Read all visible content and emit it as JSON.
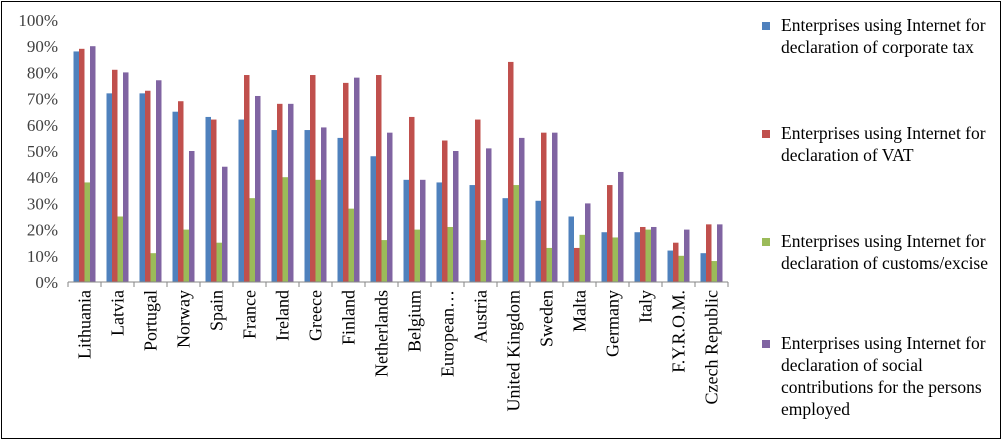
{
  "chart_data": {
    "type": "bar",
    "ylim": [
      0,
      100
    ],
    "y_ticks": [
      "0%",
      "10%",
      "20%",
      "30%",
      "40%",
      "50%",
      "60%",
      "70%",
      "80%",
      "90%",
      "100%"
    ],
    "grid": false,
    "legend_position": "right",
    "categories": [
      "Lithuania",
      "Latvia",
      "Portugal",
      "Norway",
      "Spain",
      "France",
      "Ireland",
      "Greece",
      "Finland",
      "Netherlands",
      "Belgium",
      "European…",
      "Austria",
      "United Kingdom",
      "Sweden",
      "Malta",
      "Germany",
      "Italy",
      "F.Y.R.O.M.",
      "Czech Republic"
    ],
    "series": [
      {
        "name": "Enterprises using Internet for declaration of corporate tax",
        "color": "#4F81BD",
        "values": [
          88,
          72,
          72,
          65,
          63,
          62,
          58,
          58,
          55,
          48,
          39,
          38,
          37,
          32,
          31,
          25,
          19,
          19,
          12,
          11
        ]
      },
      {
        "name": "Enterprises using Internet for declaration of VAT",
        "color": "#C0504D",
        "values": [
          89,
          81,
          73,
          69,
          62,
          79,
          68,
          79,
          76,
          79,
          63,
          54,
          62,
          84,
          57,
          13,
          37,
          21,
          15,
          22
        ]
      },
      {
        "name": "Enterprises using Internet for declaration of customs/excise",
        "color": "#9BBB59",
        "values": [
          38,
          25,
          11,
          20,
          15,
          32,
          40,
          39,
          28,
          16,
          20,
          21,
          16,
          37,
          13,
          18,
          17,
          20,
          10,
          8
        ]
      },
      {
        "name": "Enterprises using Internet for declaration of social contributions for the persons employed",
        "color": "#8064A2",
        "values": [
          90,
          80,
          77,
          50,
          44,
          71,
          68,
          59,
          78,
          57,
          39,
          50,
          51,
          55,
          57,
          30,
          42,
          21,
          20,
          22
        ]
      }
    ]
  }
}
